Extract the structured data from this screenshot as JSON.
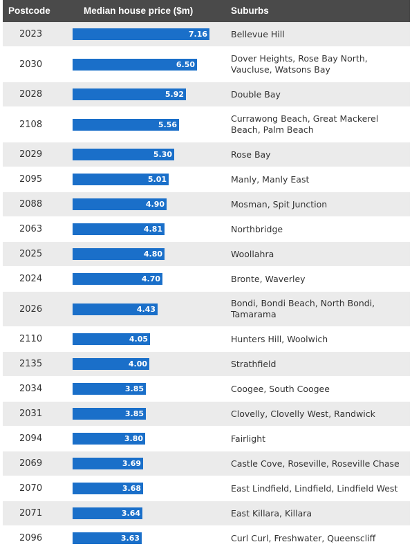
{
  "header": {
    "postcode": "Postcode",
    "price": "Median house price ($m)",
    "suburbs": "Suburbs"
  },
  "chart_data": {
    "type": "bar",
    "orientation": "horizontal",
    "xlim": [
      0,
      7.16
    ],
    "colors": {
      "bar": "#1a6fc9",
      "header": "#4a4a4a",
      "stripe": "#ebebeb"
    },
    "rows": [
      {
        "postcode": "2023",
        "value": 7.16,
        "label": "7.16",
        "suburbs": "Bellevue Hill"
      },
      {
        "postcode": "2030",
        "value": 6.5,
        "label": "6.50",
        "suburbs": "Dover Heights, Rose Bay North, Vaucluse, Watsons Bay"
      },
      {
        "postcode": "2028",
        "value": 5.92,
        "label": "5.92",
        "suburbs": "Double Bay"
      },
      {
        "postcode": "2108",
        "value": 5.56,
        "label": "5.56",
        "suburbs": "Currawong Beach, Great Mackerel Beach, Palm Beach"
      },
      {
        "postcode": "2029",
        "value": 5.3,
        "label": "5.30",
        "suburbs": "Rose Bay"
      },
      {
        "postcode": "2095",
        "value": 5.01,
        "label": "5.01",
        "suburbs": "Manly, Manly East"
      },
      {
        "postcode": "2088",
        "value": 4.9,
        "label": "4.90",
        "suburbs": "Mosman, Spit Junction"
      },
      {
        "postcode": "2063",
        "value": 4.81,
        "label": "4.81",
        "suburbs": "Northbridge"
      },
      {
        "postcode": "2025",
        "value": 4.8,
        "label": "4.80",
        "suburbs": "Woollahra"
      },
      {
        "postcode": "2024",
        "value": 4.7,
        "label": "4.70",
        "suburbs": "Bronte, Waverley"
      },
      {
        "postcode": "2026",
        "value": 4.43,
        "label": "4.43",
        "suburbs": "Bondi, Bondi Beach, North Bondi, Tamarama"
      },
      {
        "postcode": "2110",
        "value": 4.05,
        "label": "4.05",
        "suburbs": "Hunters Hill, Woolwich"
      },
      {
        "postcode": "2135",
        "value": 4.0,
        "label": "4.00",
        "suburbs": "Strathfield"
      },
      {
        "postcode": "2034",
        "value": 3.85,
        "label": "3.85",
        "suburbs": "Coogee, South Coogee"
      },
      {
        "postcode": "2031",
        "value": 3.85,
        "label": "3.85",
        "suburbs": "Clovelly, Clovelly West, Randwick"
      },
      {
        "postcode": "2094",
        "value": 3.8,
        "label": "3.80",
        "suburbs": "Fairlight"
      },
      {
        "postcode": "2069",
        "value": 3.69,
        "label": "3.69",
        "suburbs": "Castle Cove, Roseville, Roseville Chase"
      },
      {
        "postcode": "2070",
        "value": 3.68,
        "label": "3.68",
        "suburbs": "East Lindfield, Lindfield, Lindfield West"
      },
      {
        "postcode": "2071",
        "value": 3.64,
        "label": "3.64",
        "suburbs": "East Killara, Killara"
      },
      {
        "postcode": "2096",
        "value": 3.63,
        "label": "3.63",
        "suburbs": "Curl Curl, Freshwater, Queenscliff"
      }
    ]
  }
}
